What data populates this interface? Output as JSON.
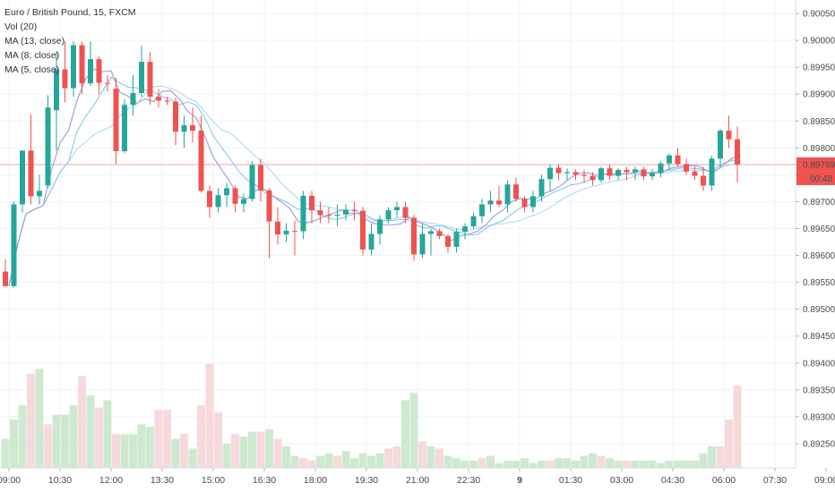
{
  "header": {
    "title": "Euro / British Pound, 15, FXCM",
    "indicators": [
      "Vol (20)",
      "MA (13, close)",
      "MA (8, close)",
      "MA (5, close)"
    ]
  },
  "price_badge": {
    "price": "0.89769",
    "countdown": "00:48"
  },
  "colors": {
    "up": "#26a69a",
    "down": "#ef5350",
    "vol_up": "#cfe9d1",
    "vol_down": "#f6d9db",
    "ma13": "#b3dcf5",
    "ma8": "#92c9ec",
    "ma5": "#9fa3d8",
    "price_line": "#f2a5a5",
    "grid": "#f0f3f5"
  },
  "chart_data": {
    "type": "candlestick",
    "y_axis": {
      "range": [
        0.89205,
        0.90075
      ],
      "ticks": [
        "0.90050",
        "0.90000",
        "0.89950",
        "0.89900",
        "0.89850",
        "0.89800",
        "0.89750",
        "0.89700",
        "0.89650",
        "0.89600",
        "0.89550",
        "0.89500",
        "0.89450",
        "0.89400",
        "0.89350",
        "0.89300",
        "0.89250"
      ]
    },
    "x_axis": {
      "ticks": [
        "09:00",
        "10:30",
        "12:00",
        "13:30",
        "15:00",
        "16:30",
        "18:00",
        "19:30",
        "21:00",
        "22:30",
        "9",
        "01:30",
        "03:00",
        "04:30",
        "06:00",
        "07:30",
        "09:00"
      ]
    },
    "last_price": 0.89769,
    "candles": [
      [
        0.8957,
        0.89593,
        0.89543,
        0.89543
      ],
      [
        0.89543,
        0.897,
        0.8954,
        0.89695
      ],
      [
        0.89695,
        0.89795,
        0.8968,
        0.89795
      ],
      [
        0.89795,
        0.89862,
        0.89695,
        0.8971
      ],
      [
        0.8971,
        0.8975,
        0.89695,
        0.8972
      ],
      [
        0.8973,
        0.89898,
        0.89725,
        0.89875
      ],
      [
        0.8987,
        0.8998,
        0.89795,
        0.89946
      ],
      [
        0.89946,
        0.89998,
        0.89885,
        0.89911
      ],
      [
        0.89911,
        0.89998,
        0.89895,
        0.89991
      ],
      [
        0.89991,
        0.89998,
        0.899,
        0.8992
      ],
      [
        0.8992,
        0.89998,
        0.89915,
        0.89965
      ],
      [
        0.89965,
        0.8997,
        0.899,
        0.89921
      ],
      [
        0.89921,
        0.89935,
        0.89905,
        0.8992
      ],
      [
        0.8991,
        0.8993,
        0.8977,
        0.89794
      ],
      [
        0.89794,
        0.8989,
        0.8979,
        0.8988
      ],
      [
        0.8988,
        0.89935,
        0.8986,
        0.89902
      ],
      [
        0.89902,
        0.8999,
        0.89895,
        0.8996
      ],
      [
        0.8996,
        0.89978,
        0.8988,
        0.89895
      ],
      [
        0.89895,
        0.8991,
        0.89875,
        0.89888
      ],
      [
        0.89888,
        0.89895,
        0.8988,
        0.89886
      ],
      [
        0.89886,
        0.89893,
        0.89805,
        0.8983
      ],
      [
        0.8983,
        0.8986,
        0.898,
        0.89842
      ],
      [
        0.89842,
        0.89875,
        0.8981,
        0.89832
      ],
      [
        0.89832,
        0.8986,
        0.89717,
        0.8972
      ],
      [
        0.8972,
        0.8973,
        0.8967,
        0.8969
      ],
      [
        0.8969,
        0.89725,
        0.8968,
        0.89712
      ],
      [
        0.89712,
        0.89735,
        0.8969,
        0.89725
      ],
      [
        0.89725,
        0.8973,
        0.8968,
        0.89696
      ],
      [
        0.89696,
        0.89715,
        0.8968,
        0.89705
      ],
      [
        0.89705,
        0.89775,
        0.897,
        0.89768
      ],
      [
        0.89768,
        0.8978,
        0.897,
        0.89721
      ],
      [
        0.89721,
        0.89725,
        0.89595,
        0.89663
      ],
      [
        0.89663,
        0.8969,
        0.8962,
        0.89639
      ],
      [
        0.89639,
        0.8966,
        0.89625,
        0.89646
      ],
      [
        0.89646,
        0.89665,
        0.896,
        0.89645
      ],
      [
        0.89645,
        0.8972,
        0.8963,
        0.89711
      ],
      [
        0.89711,
        0.8972,
        0.8966,
        0.89684
      ],
      [
        0.89684,
        0.897,
        0.8966,
        0.89675
      ],
      [
        0.89675,
        0.8969,
        0.8966,
        0.89674
      ],
      [
        0.89674,
        0.89695,
        0.89655,
        0.89676
      ],
      [
        0.89676,
        0.89695,
        0.89665,
        0.89685
      ],
      [
        0.89685,
        0.897,
        0.89665,
        0.89683
      ],
      [
        0.89683,
        0.8969,
        0.896,
        0.89611
      ],
      [
        0.89611,
        0.8966,
        0.896,
        0.8964
      ],
      [
        0.8964,
        0.89675,
        0.8962,
        0.89667
      ],
      [
        0.89667,
        0.8969,
        0.8966,
        0.89684
      ],
      [
        0.89684,
        0.897,
        0.8967,
        0.8969
      ],
      [
        0.8969,
        0.897,
        0.8966,
        0.8967
      ],
      [
        0.8967,
        0.89675,
        0.8959,
        0.89602
      ],
      [
        0.89602,
        0.8966,
        0.89595,
        0.8964
      ],
      [
        0.8964,
        0.8965,
        0.896,
        0.89645
      ],
      [
        0.89645,
        0.8965,
        0.8963,
        0.89636
      ],
      [
        0.89636,
        0.8964,
        0.89605,
        0.89616
      ],
      [
        0.89616,
        0.8965,
        0.89605,
        0.89644
      ],
      [
        0.89644,
        0.8966,
        0.8963,
        0.89654
      ],
      [
        0.89654,
        0.8968,
        0.8965,
        0.89673
      ],
      [
        0.89673,
        0.89705,
        0.8966,
        0.89695
      ],
      [
        0.89695,
        0.8972,
        0.8968,
        0.89702
      ],
      [
        0.89702,
        0.8973,
        0.8969,
        0.89695
      ],
      [
        0.89695,
        0.8974,
        0.8968,
        0.89732
      ],
      [
        0.89732,
        0.89745,
        0.897,
        0.89705
      ],
      [
        0.89705,
        0.8971,
        0.8968,
        0.8969
      ],
      [
        0.8969,
        0.8972,
        0.8968,
        0.8971
      ],
      [
        0.8971,
        0.8975,
        0.897,
        0.89742
      ],
      [
        0.89742,
        0.8977,
        0.8972,
        0.89763
      ],
      [
        0.89763,
        0.8977,
        0.8974,
        0.89753
      ],
      [
        0.89753,
        0.89762,
        0.8974,
        0.89755
      ],
      [
        0.89755,
        0.8976,
        0.8974,
        0.8975
      ],
      [
        0.8975,
        0.8976,
        0.89735,
        0.89748
      ],
      [
        0.89748,
        0.89755,
        0.8973,
        0.8974
      ],
      [
        0.8974,
        0.89765,
        0.89735,
        0.89762
      ],
      [
        0.89762,
        0.8977,
        0.8974,
        0.89748
      ],
      [
        0.89748,
        0.89762,
        0.8974,
        0.89759
      ],
      [
        0.89759,
        0.89765,
        0.8974,
        0.89755
      ],
      [
        0.89755,
        0.89765,
        0.8974,
        0.8976
      ],
      [
        0.8976,
        0.89765,
        0.8974,
        0.89747
      ],
      [
        0.89747,
        0.8976,
        0.8974,
        0.89753
      ],
      [
        0.89753,
        0.89775,
        0.89745,
        0.89771
      ],
      [
        0.89771,
        0.8979,
        0.8976,
        0.89786
      ],
      [
        0.89786,
        0.898,
        0.89765,
        0.8977
      ],
      [
        0.8977,
        0.8978,
        0.8975,
        0.89756
      ],
      [
        0.89756,
        0.89765,
        0.8974,
        0.89748
      ],
      [
        0.89748,
        0.89765,
        0.8972,
        0.8973
      ],
      [
        0.8973,
        0.89785,
        0.8972,
        0.8978
      ],
      [
        0.8978,
        0.89835,
        0.89765,
        0.89832
      ],
      [
        0.89832,
        0.8986,
        0.898,
        0.89816
      ],
      [
        0.89816,
        0.8984,
        0.89736,
        0.89769
      ]
    ],
    "volume": [
      [
        12,
        1
      ],
      [
        20,
        1
      ],
      [
        26,
        1
      ],
      [
        39,
        0
      ],
      [
        41,
        1
      ],
      [
        18,
        0
      ],
      [
        22,
        1
      ],
      [
        22,
        1
      ],
      [
        26,
        1
      ],
      [
        38,
        0
      ],
      [
        30,
        1
      ],
      [
        25,
        0
      ],
      [
        28,
        1
      ],
      [
        14,
        0
      ],
      [
        14,
        1
      ],
      [
        14,
        1
      ],
      [
        18,
        1
      ],
      [
        17,
        1
      ],
      [
        24,
        0
      ],
      [
        24,
        0
      ],
      [
        12,
        1
      ],
      [
        14,
        0
      ],
      [
        8,
        1
      ],
      [
        26,
        0
      ],
      [
        43,
        0
      ],
      [
        23,
        0
      ],
      [
        10,
        1
      ],
      [
        14,
        0
      ],
      [
        13,
        1
      ],
      [
        15,
        1
      ],
      [
        15,
        0
      ],
      [
        16,
        1
      ],
      [
        12,
        0
      ],
      [
        9,
        1
      ],
      [
        5,
        1
      ],
      [
        4,
        0
      ],
      [
        3,
        0
      ],
      [
        5,
        1
      ],
      [
        6,
        1
      ],
      [
        5,
        0
      ],
      [
        7,
        1
      ],
      [
        4,
        1
      ],
      [
        6,
        1
      ],
      [
        5,
        1
      ],
      [
        6,
        1
      ],
      [
        8,
        0
      ],
      [
        9,
        0
      ],
      [
        28,
        1
      ],
      [
        31,
        1
      ],
      [
        11,
        0
      ],
      [
        9,
        1
      ],
      [
        8,
        0
      ],
      [
        5,
        1
      ],
      [
        4,
        1
      ],
      [
        3,
        1
      ],
      [
        3,
        1
      ],
      [
        4,
        0
      ],
      [
        5,
        1
      ],
      [
        2,
        1
      ],
      [
        3,
        1
      ],
      [
        3,
        1
      ],
      [
        4,
        1
      ],
      [
        2,
        1
      ],
      [
        3,
        1
      ],
      [
        3,
        0
      ],
      [
        4,
        1
      ],
      [
        4,
        1
      ],
      [
        3,
        1
      ],
      [
        5,
        1
      ],
      [
        6,
        1
      ],
      [
        5,
        0
      ],
      [
        4,
        1
      ],
      [
        3,
        1
      ],
      [
        3,
        0
      ],
      [
        3,
        1
      ],
      [
        3,
        1
      ],
      [
        3,
        1
      ],
      [
        2,
        1
      ],
      [
        3,
        1
      ],
      [
        3,
        1
      ],
      [
        3,
        1
      ],
      [
        3,
        1
      ],
      [
        6,
        1
      ],
      [
        9,
        1
      ],
      [
        9,
        0
      ],
      [
        20,
        0
      ],
      [
        34,
        0
      ]
    ],
    "moving_averages": [
      {
        "name": "MA (13, close)",
        "period": 13
      },
      {
        "name": "MA (8, close)",
        "period": 8
      },
      {
        "name": "MA (5, close)",
        "period": 5
      }
    ]
  }
}
